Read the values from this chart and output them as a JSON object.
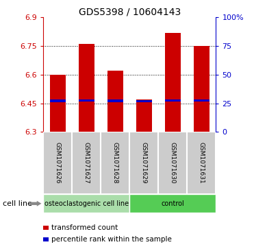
{
  "title": "GDS5398 / 10604143",
  "samples": [
    "GSM1071626",
    "GSM1071627",
    "GSM1071628",
    "GSM1071629",
    "GSM1071630",
    "GSM1071631"
  ],
  "bar_values": [
    6.6,
    6.76,
    6.62,
    6.47,
    6.82,
    6.75
  ],
  "bar_bottom": 6.3,
  "percentile_values": [
    6.463,
    6.466,
    6.463,
    6.462,
    6.466,
    6.464
  ],
  "ylim": [
    6.3,
    6.9
  ],
  "yticks_left": [
    6.3,
    6.45,
    6.6,
    6.75,
    6.9
  ],
  "yticks_right_pct": [
    0,
    25,
    50,
    75,
    100
  ],
  "ytick_labels_right": [
    "0",
    "25",
    "50",
    "75",
    "100%"
  ],
  "groups": [
    {
      "label": "osteoclastogenic cell line",
      "start": 0,
      "end": 3,
      "color": "#aaddaa"
    },
    {
      "label": "control",
      "start": 3,
      "end": 6,
      "color": "#55cc55"
    }
  ],
  "cell_line_label": "cell line",
  "bar_color": "#cc0000",
  "percentile_color": "#0000cc",
  "bar_width": 0.55,
  "axis_color_left": "#cc0000",
  "axis_color_right": "#0000cc",
  "sample_box_color": "#cccccc",
  "legend_items": [
    {
      "label": "transformed count",
      "color": "#cc0000"
    },
    {
      "label": "percentile rank within the sample",
      "color": "#0000cc"
    }
  ],
  "title_fontsize": 10,
  "tick_fontsize": 8,
  "label_fontsize": 7,
  "sample_fontsize": 6.5
}
